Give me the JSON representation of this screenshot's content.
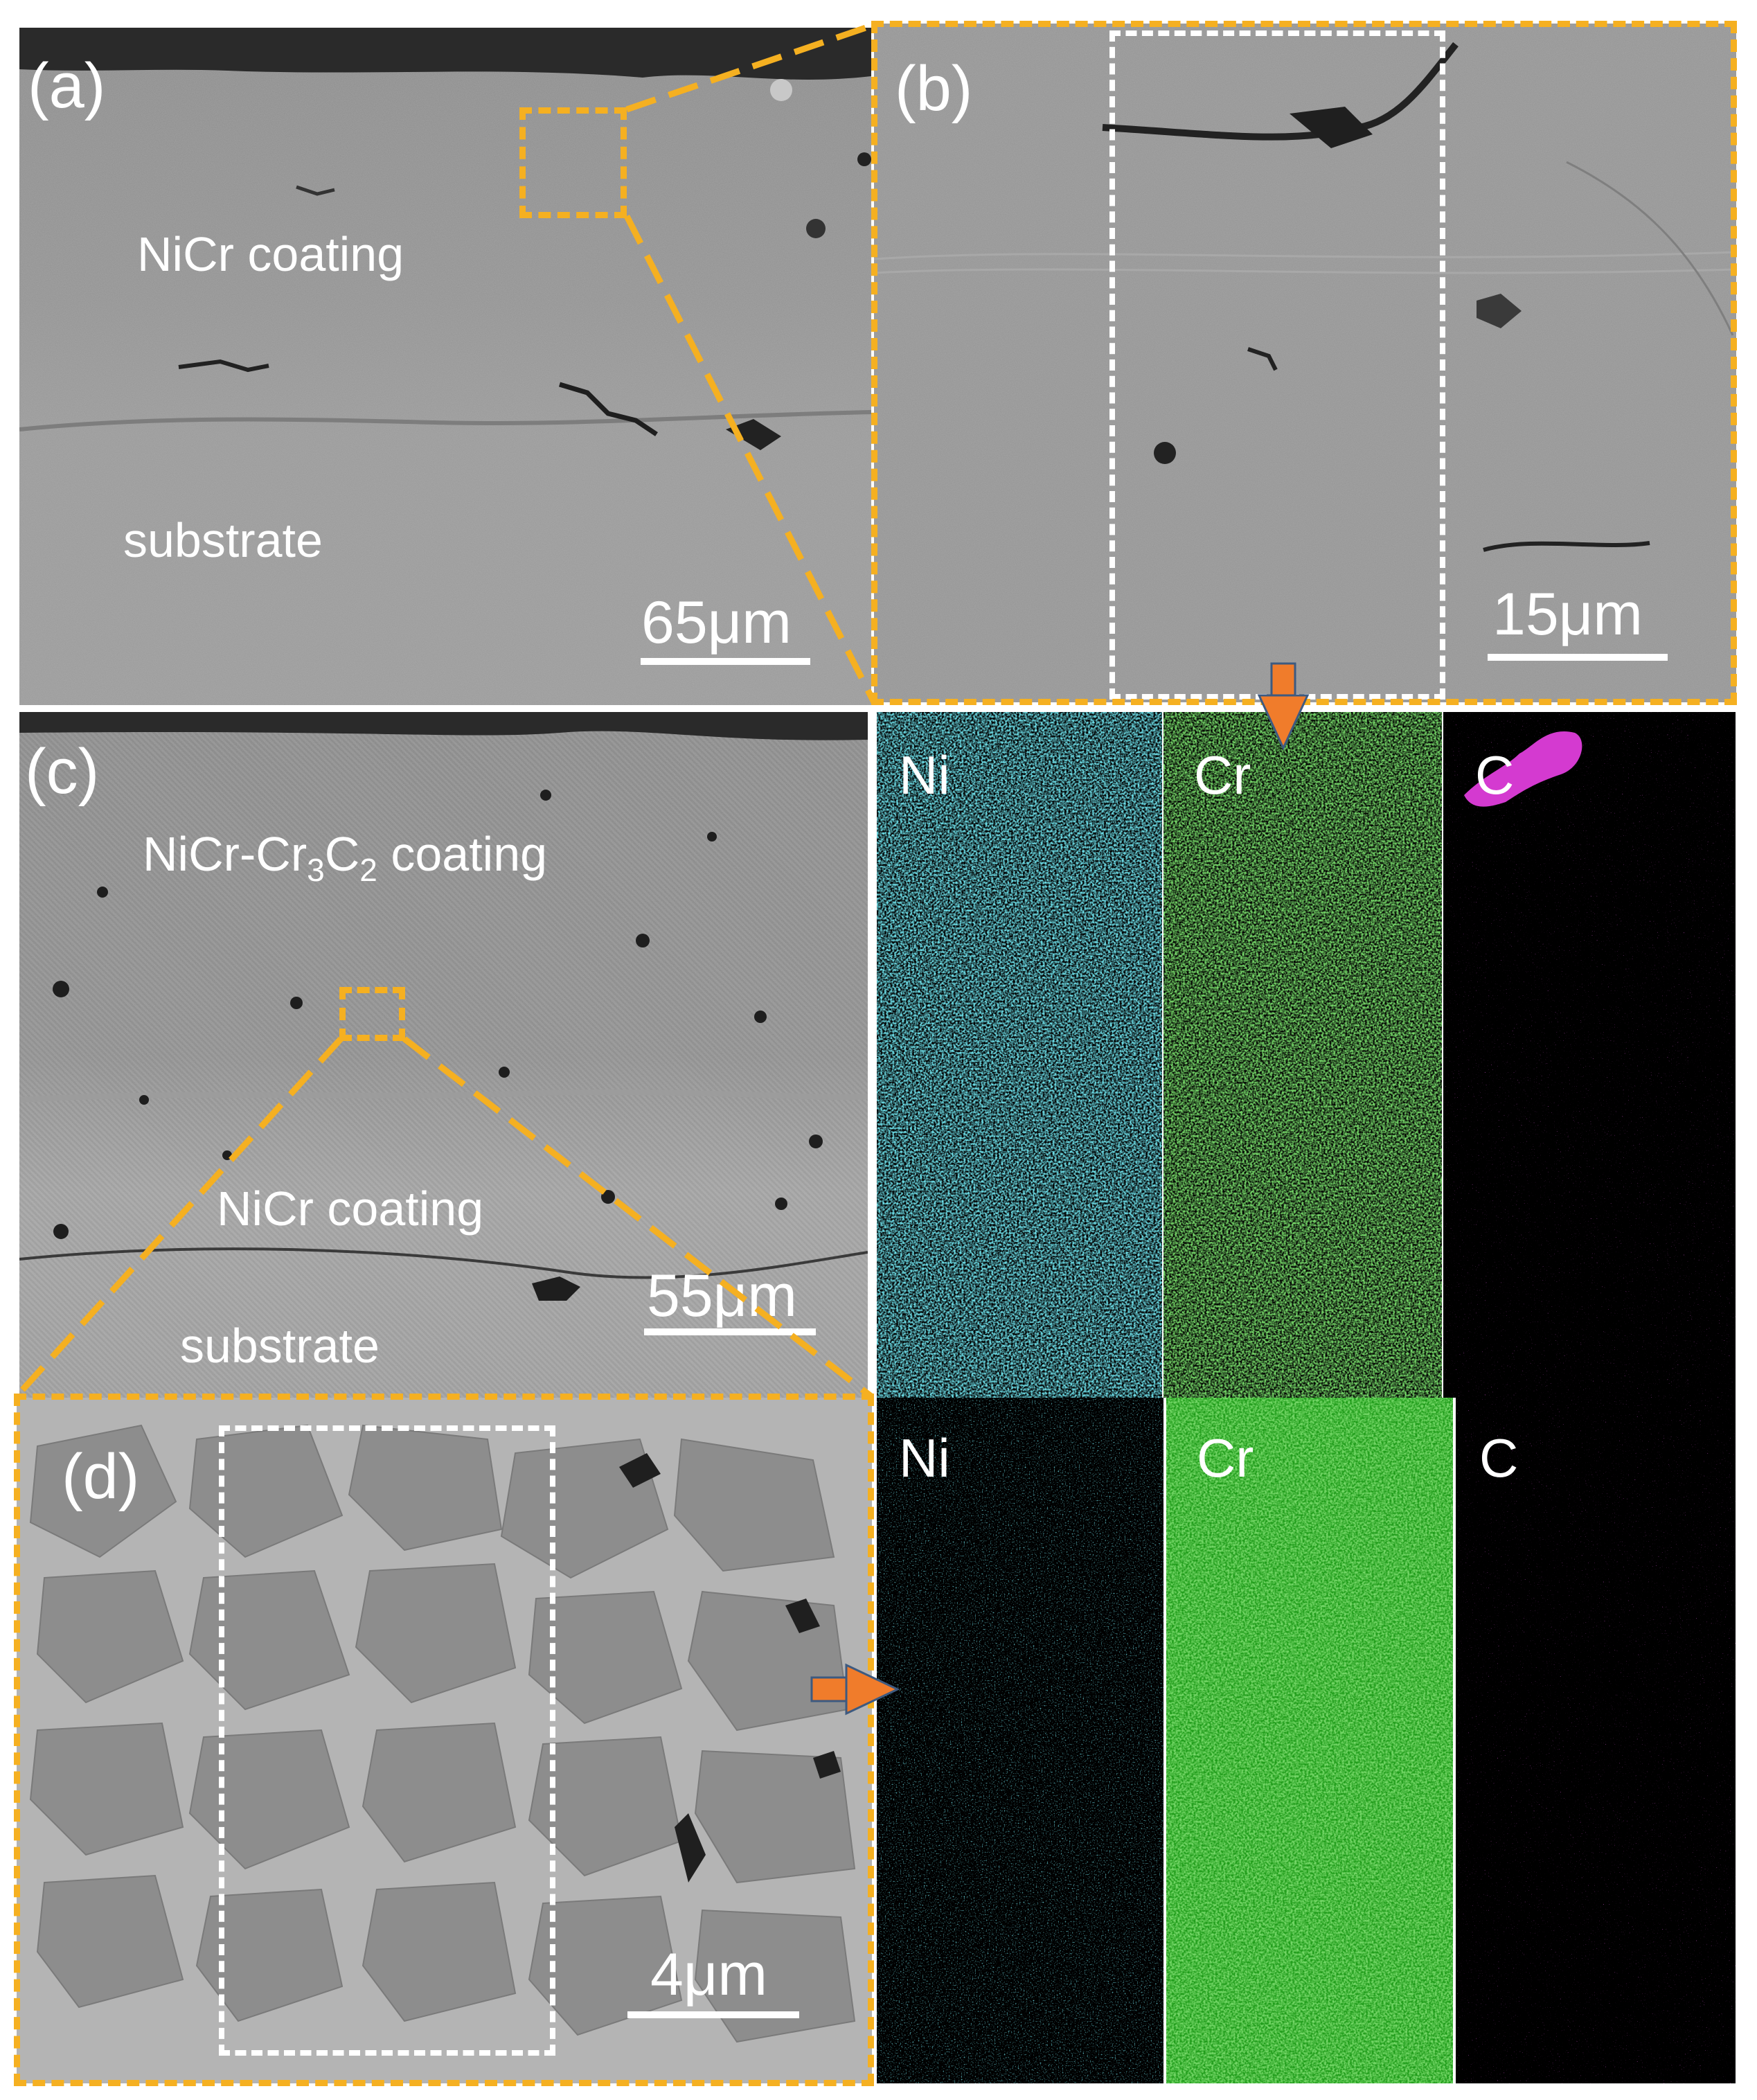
{
  "figure": {
    "panel_a": {
      "letter": "(a)",
      "regions": [
        "NiCr coating",
        "substrate"
      ],
      "scale": "65μm"
    },
    "panel_b": {
      "letter": "(b)",
      "scale": "15μm"
    },
    "panel_c": {
      "letter": "(c)",
      "coating_prefix": "NiCr-Cr",
      "sub1": "3",
      "mid": "C",
      "sub2": "2",
      "coating_suffix": " coating",
      "regions": [
        "NiCr coating",
        "substrate"
      ],
      "scale": "55μm"
    },
    "panel_d": {
      "letter": "(d)",
      "scale": "4μm"
    },
    "eds_top": {
      "elements": [
        "Ni",
        "Cr",
        "C"
      ]
    },
    "eds_bottom": {
      "elements": [
        "Ni",
        "Cr",
        "C"
      ]
    },
    "colors": {
      "highlight": "#f5b021",
      "arrow": "#f07c2b",
      "Ni": "#29c4d8",
      "Cr": "#2fb024",
      "C": "#a417a4"
    }
  }
}
